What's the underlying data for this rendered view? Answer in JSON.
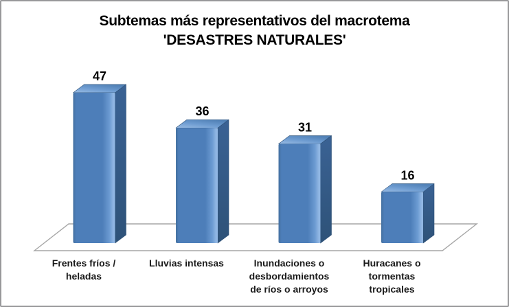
{
  "chart_data": {
    "type": "bar",
    "style": "3d-column",
    "title": "Subtemas más representativos del macrotema 'DESASTRES NATURALES'",
    "title_lines": [
      "Subtemas más representativos del macrotema",
      "'DESASTRES NATURALES'"
    ],
    "categories": [
      "Frentes fríos / heladas",
      "Lluvias intensas",
      "Inundaciones o desbordamientos de ríos o arroyos",
      "Huracanes o tormentas tropicales"
    ],
    "category_label_lines": [
      [
        "Frentes fríos /",
        "heladas"
      ],
      [
        "Lluvias intensas"
      ],
      [
        "Inundaciones o",
        "desbordamientos",
        "de ríos o arroyos"
      ],
      [
        "Huracanes o",
        "tormentas",
        "tropicales"
      ]
    ],
    "values": [
      47,
      36,
      31,
      16
    ],
    "data_labels_shown": true,
    "legend": "none",
    "gridlines": false,
    "y_axis_visible": false,
    "x_axis_visible": false,
    "xlabel": "",
    "ylabel": "",
    "colors": {
      "title": "#000000",
      "value_label": "#000000",
      "category_label": "#1a1a1a",
      "floor_outline": "#a6a6a6",
      "floor_fill": "#ffffff",
      "bar_front": "#4d7eb9",
      "bar_front_edge_dark": "#44709f",
      "bar_front_bevel": "#6c9bd2",
      "bar_front_highlight": "#90b6e3",
      "bar_top_light": "#9abce4",
      "bar_top_mid": "#6e9cd1",
      "bar_top_dark": "#5080b5",
      "bar_side_top": "#3a6294",
      "bar_side_bottom": "#2e5278",
      "bar_outline": "#2d5076",
      "canvas_border": "#98989a",
      "background": "#ffffff"
    }
  }
}
